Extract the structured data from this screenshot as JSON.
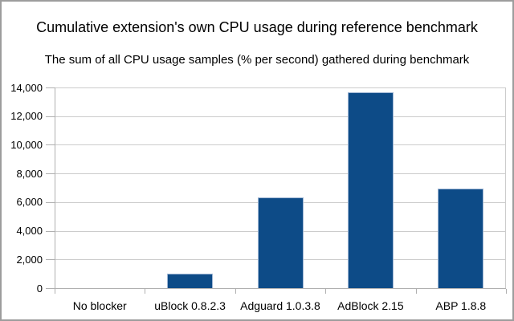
{
  "window": {
    "background_color": "#ffffff",
    "border_color": "#9d9d9d"
  },
  "chart_data": {
    "type": "bar",
    "title": "Cumulative extension's own CPU usage during reference benchmark",
    "subtitle": "The sum of all CPU usage samples (% per second) gathered during benchmark",
    "categories": [
      "No blocker",
      "uBlock 0.8.2.3",
      "Adguard 1.0.3.8",
      "AdBlock 2.15",
      "ABP 1.8.8"
    ],
    "values": [
      0,
      1030,
      6350,
      13650,
      6950
    ],
    "xlabel": "",
    "ylabel": "",
    "ylim": [
      0,
      14000
    ],
    "ytick_interval": 2000,
    "ytick_labels": [
      "0",
      "2,000",
      "4,000",
      "6,000",
      "8,000",
      "10,000",
      "12,000",
      "14,000"
    ],
    "grid": "horizontal",
    "legend": "none",
    "bar_color": "#0d4b87",
    "bar_border_color": "#9fb6d4",
    "gridline_color": "#cccccc",
    "axis_color": "#b0b0b0"
  }
}
